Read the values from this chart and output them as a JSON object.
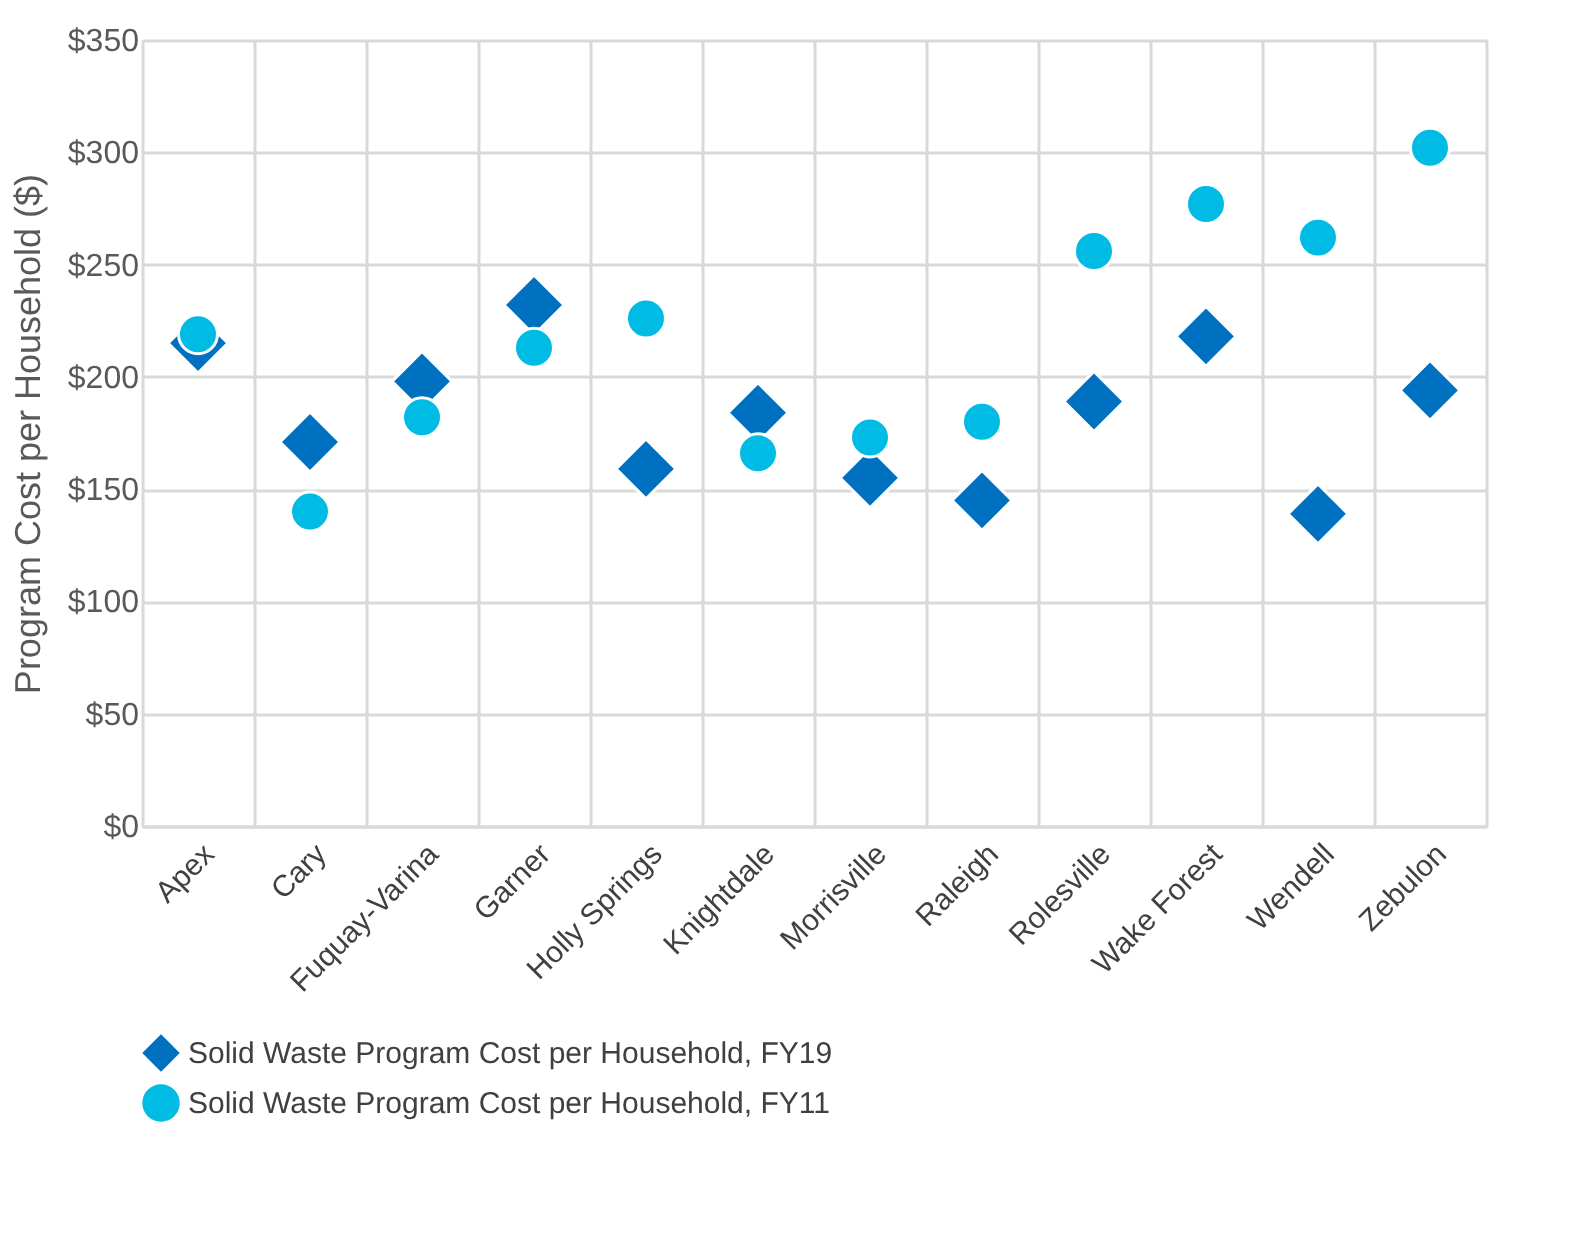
{
  "chart_data": {
    "type": "scatter",
    "ylabel": "Program Cost per Household ($)",
    "categories": [
      "Apex",
      "Cary",
      "Fuquay-Varina",
      "Garner",
      "Holly Springs",
      "Knightdale",
      "Morrisville",
      "Raleigh",
      "Rolesville",
      "Wake Forest",
      "Wendell",
      "Zebulon"
    ],
    "series": [
      {
        "name": "Solid Waste Program Cost per Household, FY19",
        "color": "#0070c0",
        "marker": "diamond",
        "values": [
          215,
          171,
          198,
          232,
          159,
          184,
          155,
          145,
          189,
          218,
          139,
          194
        ]
      },
      {
        "name": "Solid Waste Program Cost per Household, FY11",
        "color": "#00bce4",
        "marker": "circle",
        "values": [
          219,
          140,
          182,
          213,
          226,
          166,
          173,
          180,
          256,
          277,
          262,
          302
        ]
      }
    ],
    "ylim": [
      0,
      350
    ],
    "yticks": [
      {
        "value": 0,
        "label": "$0"
      },
      {
        "value": 50,
        "label": "$50"
      },
      {
        "value": 100,
        "label": "$100"
      },
      {
        "value": 150,
        "label": "$150"
      },
      {
        "value": 200,
        "label": "$200"
      },
      {
        "value": 250,
        "label": "$250"
      },
      {
        "value": 300,
        "label": "$300"
      },
      {
        "value": 350,
        "label": "$350"
      }
    ],
    "grid": true,
    "legend": "bottom"
  }
}
